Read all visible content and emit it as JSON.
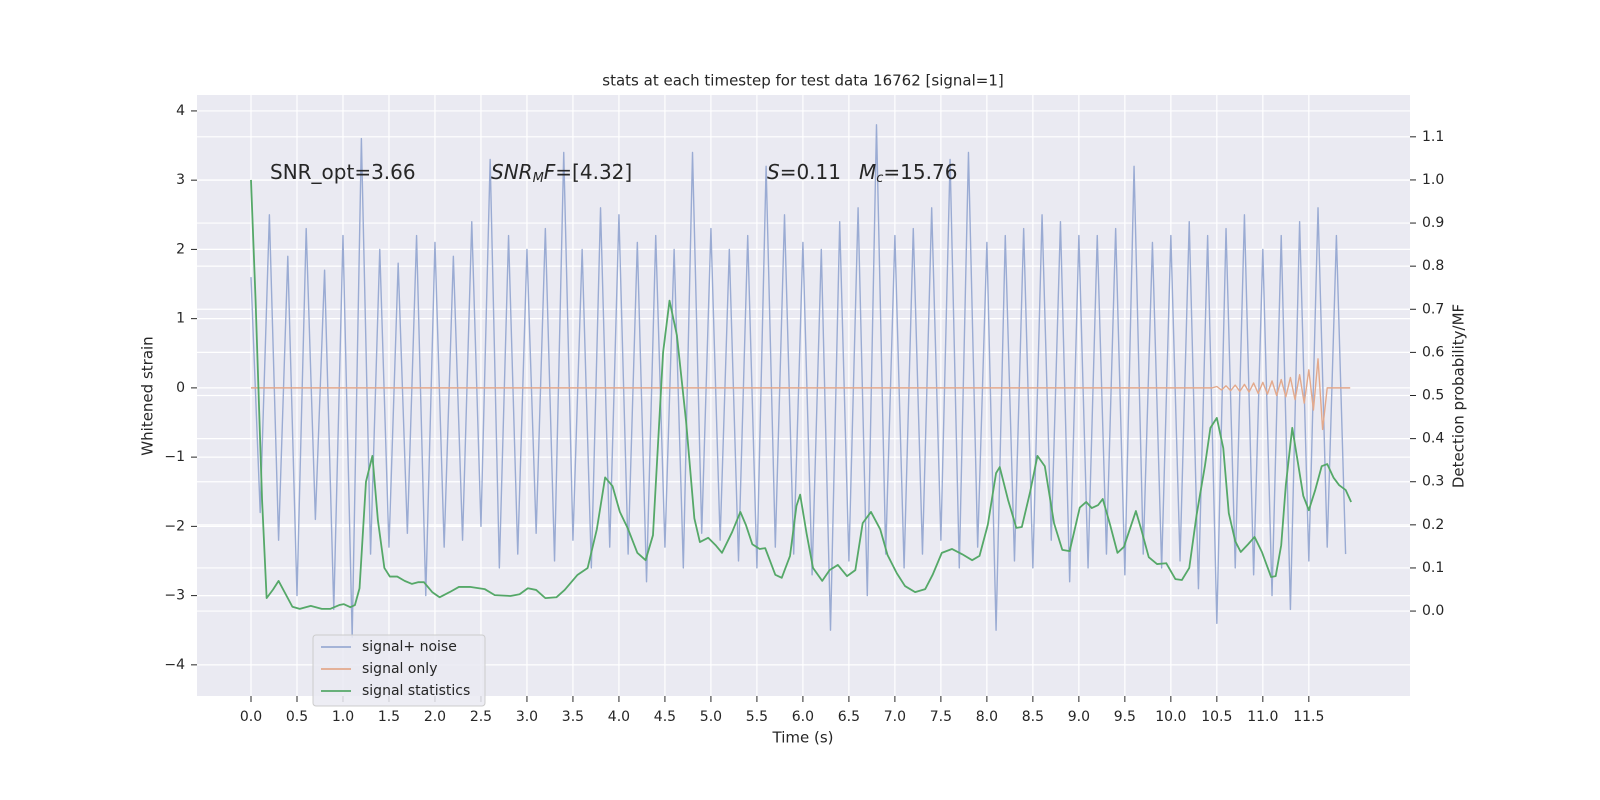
{
  "chart_data": {
    "type": "line",
    "title": "stats at each timestep for test data 16762 [signal=1]",
    "x_label": "Time (s)",
    "y_label": "Whitened strain",
    "y2_label": "Detection probability/MF",
    "annotations": [
      [
        "SNR_opt=3.66"
      ],
      [
        "SNR",
        "M",
        "F",
        "=[4.32]"
      ],
      [
        "S",
        "=0.11"
      ],
      [
        "M",
        "c",
        "=15.76"
      ]
    ],
    "xlim": [
      -0.587,
      12.6
    ],
    "ylim": [
      -4.45,
      4.23
    ],
    "y2lim": [
      -0.197,
      1.197
    ],
    "xticks": [
      {
        "value": 0,
        "label": "0.0"
      },
      0.5,
      {
        "value": 1,
        "label": "1.0"
      },
      1.5,
      {
        "value": 2,
        "label": "2.0"
      },
      2.5,
      {
        "value": 3,
        "label": "3.0"
      },
      3.5,
      {
        "value": 4,
        "label": "4.0"
      },
      4.5,
      {
        "value": 5,
        "label": "5.0"
      },
      5.5,
      {
        "value": 6,
        "label": "6.0"
      },
      6.5,
      {
        "value": 7,
        "label": "7.0"
      },
      7.5,
      {
        "value": 8,
        "label": "8.0"
      },
      8.5,
      {
        "value": 9,
        "label": "9.0"
      },
      9.5,
      {
        "value": 10,
        "label": "10.0"
      },
      10.5,
      {
        "value": 11,
        "label": "11.0"
      },
      11.5
    ],
    "yticks": [
      {
        "value": -4,
        "label": "−4"
      },
      {
        "value": -3,
        "label": "−3"
      },
      {
        "value": -2,
        "label": "−2"
      },
      {
        "value": -1,
        "label": "−1"
      },
      0,
      1,
      2,
      3,
      4
    ],
    "y2ticks": [
      {
        "value": 0,
        "label": "0.0"
      },
      0.1,
      0.2,
      0.3,
      0.4,
      0.5,
      0.6,
      0.7,
      0.8,
      0.9,
      {
        "value": 1,
        "label": "1.0"
      },
      1.1
    ],
    "grid": true,
    "legend": "lower left",
    "series": [
      {
        "name": "signal+ noise",
        "color": "#9aabd3",
        "x": [
          0.0,
          0.1,
          0.2,
          0.3,
          0.4,
          0.5,
          0.6,
          0.7,
          0.8,
          0.9,
          1.0,
          1.1,
          1.2,
          1.3,
          1.4,
          1.5,
          1.6,
          1.7,
          1.8,
          1.9,
          2.0,
          2.1,
          2.2,
          2.3,
          2.4,
          2.5,
          2.6,
          2.7,
          2.8,
          2.9,
          3.0,
          3.1,
          3.2,
          3.3,
          3.4,
          3.5,
          3.6,
          3.7,
          3.8,
          3.9,
          4.0,
          4.1,
          4.2,
          4.3,
          4.4,
          4.5,
          4.6,
          4.7,
          4.8,
          4.9,
          5.0,
          5.1,
          5.2,
          5.3,
          5.4,
          5.5,
          5.6,
          5.7,
          5.8,
          5.9,
          6.0,
          6.1,
          6.2,
          6.3,
          6.4,
          6.5,
          6.6,
          6.7,
          6.8,
          6.9,
          7.0,
          7.1,
          7.2,
          7.3,
          7.4,
          7.5,
          7.6,
          7.7,
          7.8,
          7.9,
          8.0,
          8.1,
          8.2,
          8.3,
          8.4,
          8.5,
          8.6,
          8.7,
          8.8,
          8.9,
          9.0,
          9.1,
          9.2,
          9.3,
          9.4,
          9.5,
          9.6,
          9.7,
          9.8,
          9.9,
          10.0,
          10.1,
          10.2,
          10.3,
          10.4,
          10.5,
          10.6,
          10.7,
          10.8,
          10.9,
          11.0,
          11.1,
          11.2,
          11.3,
          11.4,
          11.5,
          11.6,
          11.7,
          11.8,
          11.9
        ],
        "values": [
          1.6,
          -1.8,
          2.5,
          -2.2,
          1.9,
          -3.0,
          2.3,
          -1.9,
          1.7,
          -3.2,
          2.2,
          -3.6,
          3.6,
          -2.4,
          2.0,
          -2.3,
          1.8,
          -2.1,
          2.2,
          -3.0,
          2.1,
          -2.3,
          1.9,
          -2.2,
          2.4,
          -2.0,
          3.3,
          -2.6,
          2.2,
          -2.4,
          2.0,
          -2.1,
          2.3,
          -2.5,
          3.4,
          -2.2,
          2.0,
          -2.6,
          2.6,
          -2.3,
          2.5,
          -2.4,
          2.1,
          -2.8,
          2.2,
          -2.3,
          2.0,
          -2.6,
          3.4,
          -2.1,
          2.3,
          -2.2,
          2.0,
          -2.5,
          2.2,
          -2.6,
          3.2,
          -2.3,
          2.5,
          -2.4,
          2.1,
          -2.7,
          2.0,
          -3.5,
          2.4,
          -2.5,
          2.6,
          -3.0,
          3.8,
          -2.4,
          2.2,
          -2.6,
          2.3,
          -2.4,
          2.6,
          -2.2,
          3.3,
          -2.6,
          3.4,
          -2.3,
          2.1,
          -3.5,
          2.2,
          -2.5,
          2.3,
          -2.6,
          2.5,
          -2.2,
          2.4,
          -2.8,
          2.2,
          -2.6,
          2.2,
          -2.4,
          2.3,
          -2.7,
          3.2,
          -2.4,
          2.1,
          -2.6,
          2.2,
          -2.5,
          2.4,
          -2.9,
          2.2,
          -3.4,
          2.3,
          -2.6,
          2.5,
          -2.7,
          2.0,
          -3.0,
          2.2,
          -3.2,
          2.4,
          -2.5,
          2.6,
          -2.3,
          2.2,
          -2.4
        ]
      },
      {
        "name": "signal only",
        "color": "#e3a98c",
        "x": [
          0.0,
          10.45,
          10.5,
          10.55,
          10.6,
          10.65,
          10.7,
          10.75,
          10.8,
          10.85,
          10.9,
          10.95,
          11.0,
          11.05,
          11.1,
          11.15,
          11.2,
          11.25,
          11.3,
          11.35,
          11.4,
          11.45,
          11.5,
          11.55,
          11.6,
          11.65,
          11.7,
          11.95
        ],
        "values": [
          0.0,
          0.0,
          0.02,
          -0.03,
          0.03,
          -0.04,
          0.04,
          -0.05,
          0.05,
          -0.06,
          0.07,
          -0.08,
          0.08,
          -0.09,
          0.1,
          -0.11,
          0.12,
          -0.13,
          0.15,
          -0.17,
          0.19,
          -0.22,
          0.26,
          -0.32,
          0.42,
          -0.6,
          0.0,
          0.0
        ]
      },
      {
        "name": "signal statistics",
        "color": "#55a868",
        "axis": "y2",
        "x": [
          0,
          0.05,
          0.12,
          0.17,
          0.24,
          0.3,
          0.45,
          0.53,
          0.65,
          0.77,
          0.86,
          0.96,
          1.01,
          1.08,
          1.13,
          1.18,
          1.25,
          1.32,
          1.38,
          1.45,
          1.51,
          1.59,
          1.67,
          1.75,
          1.82,
          1.88,
          1.97,
          2.05,
          2.16,
          2.26,
          2.38,
          2.54,
          2.65,
          2.82,
          2.92,
          3.01,
          3.1,
          3.2,
          3.32,
          3.41,
          3.55,
          3.66,
          3.76,
          3.85,
          3.93,
          4.01,
          4.1,
          4.2,
          4.29,
          4.37,
          4.48,
          4.55,
          4.63,
          4.73,
          4.82,
          4.88,
          4.97,
          5.05,
          5.12,
          5.23,
          5.32,
          5.38,
          5.45,
          5.53,
          5.59,
          5.64,
          5.7,
          5.77,
          5.86,
          5.93,
          5.97,
          6.04,
          6.11,
          6.21,
          6.29,
          6.38,
          6.48,
          6.57,
          6.65,
          6.74,
          6.84,
          6.92,
          7.02,
          7.11,
          7.22,
          7.33,
          7.41,
          7.51,
          7.62,
          7.73,
          7.84,
          7.92,
          8.01,
          8.1,
          8.14,
          8.23,
          8.32,
          8.38,
          8.47,
          8.55,
          8.63,
          8.73,
          8.82,
          8.9,
          9.01,
          9.08,
          9.14,
          9.21,
          9.26,
          9.34,
          9.42,
          9.49,
          9.62,
          9.68,
          9.76,
          9.85,
          9.95,
          10.05,
          10.12,
          10.2,
          10.28,
          10.37,
          10.43,
          10.5,
          10.57,
          10.63,
          10.7,
          10.76,
          10.84,
          10.91,
          10.99,
          11.09,
          11.14,
          11.2,
          11.25,
          11.32,
          11.38,
          11.44,
          11.5,
          11.57,
          11.64,
          11.7,
          11.77,
          11.83,
          11.9,
          11.96
        ],
        "values": [
          1.0,
          0.72,
          0.26,
          0.03,
          0.05,
          0.07,
          0.01,
          0.005,
          0.012,
          0.005,
          0.005,
          0.014,
          0.016,
          0.009,
          0.014,
          0.053,
          0.3,
          0.36,
          0.21,
          0.1,
          0.08,
          0.08,
          0.07,
          0.063,
          0.067,
          0.067,
          0.044,
          0.032,
          0.044,
          0.056,
          0.056,
          0.051,
          0.037,
          0.035,
          0.039,
          0.053,
          0.049,
          0.03,
          0.032,
          0.049,
          0.084,
          0.1,
          0.19,
          0.31,
          0.29,
          0.23,
          0.19,
          0.135,
          0.118,
          0.176,
          0.6,
          0.72,
          0.64,
          0.44,
          0.215,
          0.16,
          0.17,
          0.153,
          0.135,
          0.183,
          0.23,
          0.2,
          0.155,
          0.144,
          0.146,
          0.118,
          0.084,
          0.077,
          0.128,
          0.244,
          0.27,
          0.18,
          0.1,
          0.07,
          0.095,
          0.107,
          0.081,
          0.095,
          0.204,
          0.23,
          0.19,
          0.13,
          0.088,
          0.058,
          0.044,
          0.051,
          0.084,
          0.135,
          0.144,
          0.132,
          0.118,
          0.128,
          0.2,
          0.32,
          0.334,
          0.258,
          0.193,
          0.195,
          0.276,
          0.36,
          0.336,
          0.204,
          0.142,
          0.139,
          0.24,
          0.253,
          0.239,
          0.246,
          0.26,
          0.2,
          0.135,
          0.149,
          0.232,
          0.188,
          0.125,
          0.109,
          0.111,
          0.074,
          0.072,
          0.1,
          0.223,
          0.336,
          0.425,
          0.448,
          0.378,
          0.227,
          0.162,
          0.137,
          0.155,
          0.172,
          0.137,
          0.079,
          0.081,
          0.153,
          0.292,
          0.425,
          0.346,
          0.267,
          0.234,
          0.281,
          0.336,
          0.341,
          0.309,
          0.292,
          0.281,
          0.253
        ]
      }
    ]
  }
}
